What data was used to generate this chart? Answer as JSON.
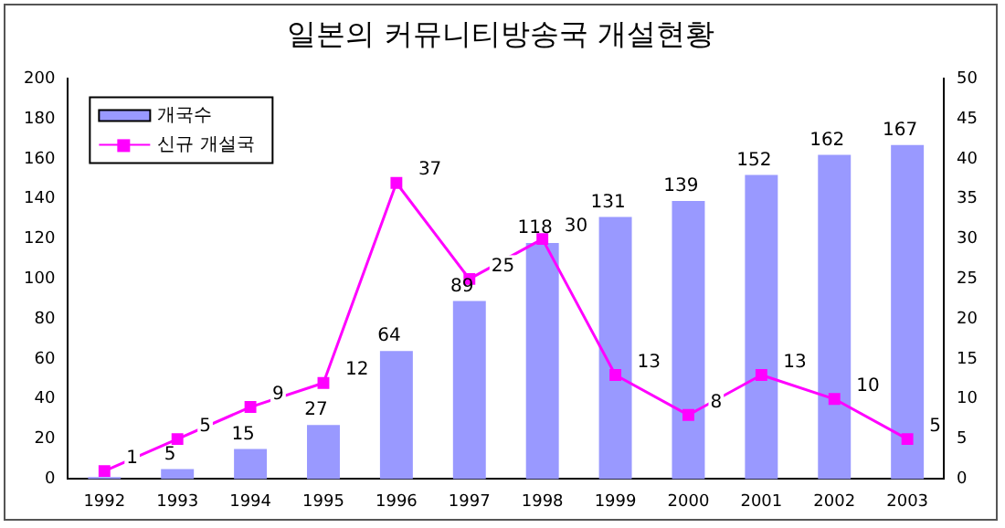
{
  "chart_data": {
    "type": "bar",
    "title": "일본의 커뮤니티방송국 개설현황",
    "categories": [
      "1992",
      "1993",
      "1994",
      "1995",
      "1996",
      "1997",
      "1998",
      "1999",
      "2000",
      "2001",
      "2002",
      "2003"
    ],
    "series": [
      {
        "name": "개국수",
        "color": "#9999ff",
        "values": [
          1,
          5,
          15,
          27,
          64,
          89,
          118,
          131,
          139,
          152,
          162,
          167
        ],
        "value_labels": [
          null,
          "5",
          "15",
          "27",
          "64",
          "89",
          "118",
          "131",
          "139",
          "152",
          "162",
          "167"
        ]
      },
      {
        "name": "신규 개설국",
        "type": "line",
        "axis": "y2",
        "color": "#ff00ff",
        "values": [
          1,
          5,
          9,
          12,
          37,
          25,
          30,
          13,
          8,
          13,
          10,
          5
        ],
        "value_labels": [
          "1",
          "5",
          "9",
          "12",
          "37",
          "25",
          "30",
          "13",
          "8",
          "13",
          "10",
          "5"
        ]
      }
    ],
    "ylim": [
      0,
      200
    ],
    "yticks": [
      0,
      20,
      40,
      60,
      80,
      100,
      120,
      140,
      160,
      180,
      200
    ],
    "y2lim": [
      0,
      50
    ],
    "y2ticks": [
      0,
      5,
      10,
      15,
      20,
      25,
      30,
      35,
      40,
      45,
      50
    ],
    "legend": "top left",
    "grid": false,
    "marker": "square",
    "line_style": "solid"
  }
}
